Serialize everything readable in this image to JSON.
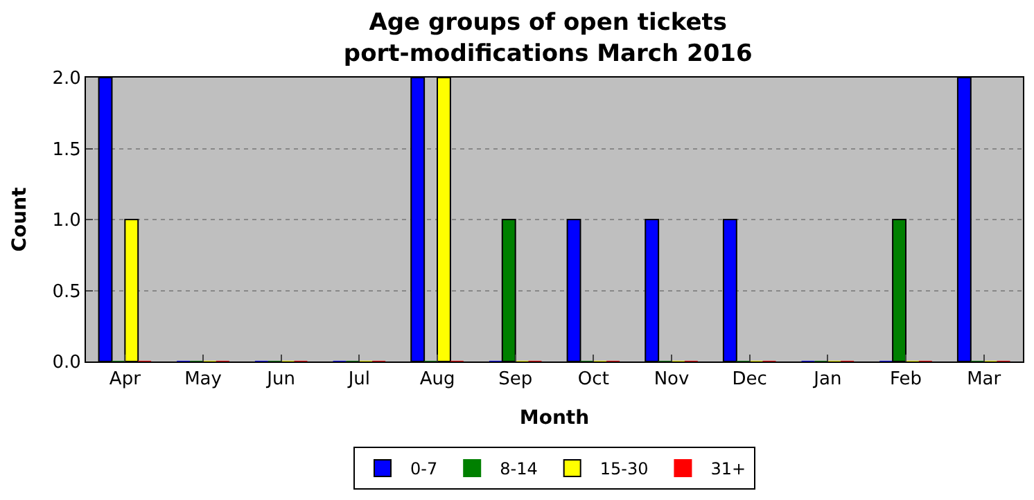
{
  "chart_data": {
    "type": "bar",
    "title": "Age groups of open tickets\nport-modifications March 2016",
    "xlabel": "Month",
    "ylabel": "Count",
    "categories": [
      "Apr",
      "May",
      "Jun",
      "Jul",
      "Aug",
      "Sep",
      "Oct",
      "Nov",
      "Dec",
      "Jan",
      "Feb",
      "Mar"
    ],
    "series": [
      {
        "name": "0-7",
        "color": "#0000ff",
        "values": [
          2,
          0,
          0,
          0,
          2,
          0,
          1,
          1,
          1,
          0,
          0,
          2
        ]
      },
      {
        "name": "8-14",
        "color": "#008000",
        "values": [
          0,
          0,
          0,
          0,
          0,
          1,
          0,
          0,
          0,
          0,
          1,
          0
        ]
      },
      {
        "name": "15-30",
        "color": "#ffff00",
        "values": [
          1,
          0,
          0,
          0,
          2,
          0,
          0,
          0,
          0,
          0,
          0,
          0
        ]
      },
      {
        "name": "31+",
        "color": "#ff0000",
        "values": [
          0,
          0,
          0,
          0,
          0,
          0,
          0,
          0,
          0,
          0,
          0,
          0
        ]
      }
    ],
    "ylim": [
      0,
      2
    ],
    "yticks": [
      {
        "value": 0,
        "label": "0.0"
      },
      {
        "value": 0.5,
        "label": "0.5"
      },
      {
        "value": 1,
        "label": "1.0"
      },
      {
        "value": 1.5,
        "label": "1.5"
      },
      {
        "value": 2,
        "label": "2.0"
      }
    ],
    "grid": "y",
    "legend": "bottom"
  }
}
